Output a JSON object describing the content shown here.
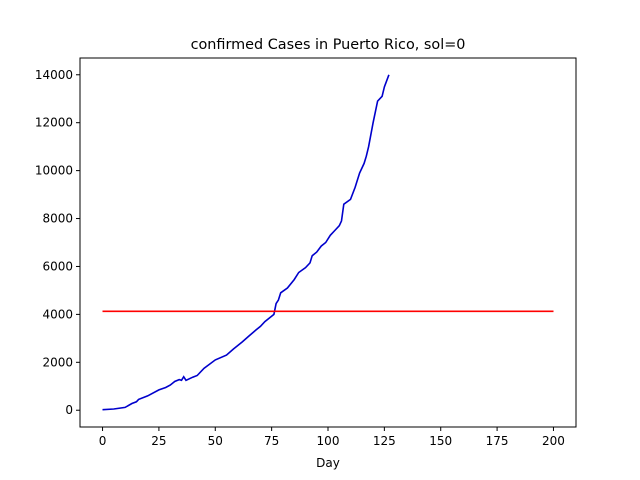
{
  "chart_data": {
    "type": "line",
    "title": "confirmed Cases in Puerto Rico, sol=0",
    "xlabel": "Day",
    "ylabel": "",
    "xlim": [
      -10,
      210
    ],
    "ylim": [
      -700,
      14700
    ],
    "x_ticks": [
      0,
      25,
      50,
      75,
      100,
      125,
      150,
      175,
      200
    ],
    "y_ticks": [
      0,
      2000,
      4000,
      6000,
      8000,
      10000,
      12000,
      14000
    ],
    "grid": false,
    "legend": "none",
    "series": [
      {
        "color": "#0000cc",
        "points": [
          [
            0,
            20
          ],
          [
            5,
            50
          ],
          [
            10,
            120
          ],
          [
            13,
            280
          ],
          [
            15,
            350
          ],
          [
            16,
            450
          ],
          [
            20,
            600
          ],
          [
            25,
            850
          ],
          [
            28,
            950
          ],
          [
            30,
            1050
          ],
          [
            32,
            1200
          ],
          [
            34,
            1280
          ],
          [
            35,
            1250
          ],
          [
            36,
            1400
          ],
          [
            37,
            1250
          ],
          [
            40,
            1380
          ],
          [
            42,
            1450
          ],
          [
            45,
            1750
          ],
          [
            50,
            2100
          ],
          [
            55,
            2300
          ],
          [
            58,
            2550
          ],
          [
            60,
            2700
          ],
          [
            62,
            2850
          ],
          [
            65,
            3100
          ],
          [
            68,
            3350
          ],
          [
            70,
            3500
          ],
          [
            72,
            3700
          ],
          [
            74,
            3850
          ],
          [
            76,
            4000
          ],
          [
            77,
            4450
          ],
          [
            78,
            4600
          ],
          [
            79,
            4900
          ],
          [
            82,
            5100
          ],
          [
            85,
            5450
          ],
          [
            87,
            5750
          ],
          [
            90,
            5950
          ],
          [
            92,
            6150
          ],
          [
            93,
            6450
          ],
          [
            95,
            6600
          ],
          [
            97,
            6850
          ],
          [
            99,
            7000
          ],
          [
            101,
            7300
          ],
          [
            103,
            7500
          ],
          [
            105,
            7700
          ],
          [
            106,
            7900
          ],
          [
            107,
            8600
          ],
          [
            110,
            8800
          ],
          [
            112,
            9300
          ],
          [
            114,
            9900
          ],
          [
            116,
            10300
          ],
          [
            117,
            10600
          ],
          [
            118,
            11000
          ],
          [
            120,
            12000
          ],
          [
            122,
            12900
          ],
          [
            124,
            13100
          ],
          [
            125,
            13500
          ],
          [
            127,
            14000
          ]
        ]
      },
      {
        "color": "#ff0000",
        "points": [
          [
            0,
            4130
          ],
          [
            200,
            4130
          ]
        ]
      }
    ]
  }
}
